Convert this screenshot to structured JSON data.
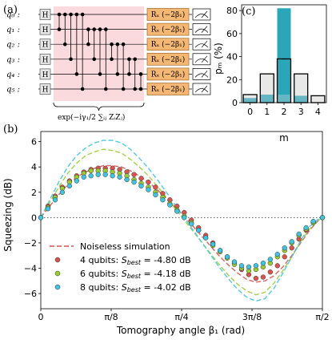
{
  "panel_labels": {
    "a": "(a)",
    "b": "(b)",
    "c": "(c)"
  },
  "circuit": {
    "qubits": [
      "q₀ :",
      "q₁ :",
      "q₂ :",
      "q₃ :",
      "q₄ :",
      "q₅ :"
    ],
    "h_gate": "H",
    "rx_gate": "Rₓ (−2β₁)",
    "expression": "exp(−iγ₁/2 ∑ᵢⱼ ZᵢZⱼ)",
    "colors": {
      "interaction_region": "#fadadd",
      "rx_gate": "#f5b774",
      "h_gate": "#e6e6e6"
    },
    "icons": [
      "measurement-meter-icon"
    ]
  },
  "chart_data": [
    {
      "id": "b",
      "type": "line",
      "xlabel": "Tomography angle β₁ (rad)",
      "ylabel": "Squeezing (dB)",
      "xlim": [
        0,
        1.5708
      ],
      "ylim": [
        -7.2,
        6.8
      ],
      "xticks": [
        0,
        0.3927,
        0.7854,
        1.1781,
        1.5708
      ],
      "xtick_labels": [
        "0",
        "π/8",
        "π/4",
        "3π/8",
        "π/2"
      ],
      "yticks": [
        -6,
        -4,
        -2,
        0,
        2,
        4,
        6
      ],
      "ytick_labels": [
        "−6",
        "−4",
        "−2",
        "0",
        "2",
        "4",
        "6"
      ],
      "zero_line": true,
      "legend_position": "lower-left",
      "legend": {
        "dashed": "Noiseless simulation",
        "items": [
          {
            "prefix": "4 qubits: ",
            "s": "S",
            "sub": "best",
            "suffix": " = -4.80 dB",
            "color": "#d9534f"
          },
          {
            "prefix": "6 qubits: ",
            "s": "S",
            "sub": "best",
            "suffix": " = -4.18 dB",
            "color": "#9acd32"
          },
          {
            "prefix": "8 qubits: ",
            "s": "S",
            "sub": "best",
            "suffix": " = -4.02 dB",
            "color": "#40c4e0"
          }
        ]
      },
      "series": [
        {
          "qubits": 4,
          "color": "#d9534f",
          "simulation": {
            "x": [
              0,
              0.05,
              0.1,
              0.15,
              0.2,
              0.25,
              0.3,
              0.35,
              0.4,
              0.45,
              0.5,
              0.55,
              0.6,
              0.65,
              0.7,
              0.75,
              0.8,
              0.85,
              0.9,
              0.95,
              1.0,
              1.05,
              1.1,
              1.15,
              1.2,
              1.25,
              1.3,
              1.35,
              1.4,
              1.45,
              1.5,
              1.55,
              1.5708
            ],
            "y": [
              0,
              0.9,
              1.8,
              2.6,
              3.2,
              3.6,
              3.9,
              4.1,
              4.1,
              4.0,
              3.7,
              3.3,
              2.8,
              2.2,
              1.5,
              0.8,
              0.1,
              -0.7,
              -1.5,
              -2.3,
              -3.1,
              -3.8,
              -4.4,
              -4.9,
              -5.1,
              -5.0,
              -4.6,
              -3.9,
              -3.0,
              -2.0,
              -1.0,
              -0.2,
              0
            ]
          },
          "measured": {
            "x": [
              0,
              0.04,
              0.08,
              0.12,
              0.16,
              0.2,
              0.24,
              0.28,
              0.32,
              0.36,
              0.4,
              0.44,
              0.48,
              0.52,
              0.56,
              0.6,
              0.64,
              0.68,
              0.72,
              0.76,
              0.8,
              0.84,
              0.88,
              0.92,
              0.96,
              1.0,
              1.04,
              1.08,
              1.12,
              1.16,
              1.2,
              1.24,
              1.28,
              1.32,
              1.36,
              1.4,
              1.44,
              1.48,
              1.52,
              1.5708
            ],
            "y": [
              0,
              0.9,
              1.7,
              2.4,
              2.9,
              3.3,
              3.6,
              3.8,
              3.9,
              3.9,
              3.9,
              3.8,
              3.6,
              3.4,
              3.1,
              2.8,
              2.4,
              1.9,
              1.4,
              0.9,
              0.4,
              -0.2,
              -0.8,
              -1.4,
              -2.0,
              -2.6,
              -3.1,
              -3.6,
              -4.1,
              -4.5,
              -4.8,
              -4.7,
              -4.3,
              -3.8,
              -3.1,
              -2.4,
              -1.7,
              -1.0,
              -0.4,
              0
            ]
          }
        },
        {
          "qubits": 6,
          "color": "#9acd32",
          "simulation": {
            "x": [
              0,
              0.05,
              0.1,
              0.15,
              0.2,
              0.25,
              0.3,
              0.35,
              0.4,
              0.45,
              0.5,
              0.55,
              0.6,
              0.65,
              0.7,
              0.75,
              0.8,
              0.85,
              0.9,
              0.95,
              1.0,
              1.05,
              1.1,
              1.15,
              1.2,
              1.25,
              1.3,
              1.35,
              1.4,
              1.45,
              1.5,
              1.55,
              1.5708
            ],
            "y": [
              0,
              1.2,
              2.4,
              3.5,
              4.3,
              4.9,
              5.2,
              5.4,
              5.3,
              5.1,
              4.6,
              4.0,
              3.3,
              2.5,
              1.6,
              0.7,
              -0.2,
              -1.1,
              -2.0,
              -2.9,
              -3.8,
              -4.6,
              -5.3,
              -5.8,
              -6.1,
              -5.9,
              -5.2,
              -4.2,
              -3.1,
              -1.9,
              -0.9,
              -0.2,
              0
            ]
          },
          "measured": {
            "x": [
              0,
              0.04,
              0.08,
              0.12,
              0.16,
              0.2,
              0.24,
              0.28,
              0.32,
              0.36,
              0.4,
              0.44,
              0.48,
              0.52,
              0.56,
              0.6,
              0.64,
              0.68,
              0.72,
              0.76,
              0.8,
              0.84,
              0.88,
              0.92,
              0.96,
              1.0,
              1.04,
              1.08,
              1.12,
              1.16,
              1.2,
              1.24,
              1.28,
              1.32,
              1.36,
              1.4,
              1.44,
              1.48,
              1.52,
              1.5708
            ],
            "y": [
              0,
              0.8,
              1.6,
              2.3,
              2.8,
              3.2,
              3.5,
              3.7,
              3.7,
              3.7,
              3.6,
              3.5,
              3.3,
              3.0,
              2.7,
              2.4,
              2.0,
              1.6,
              1.1,
              0.6,
              0.1,
              -0.4,
              -1.0,
              -1.6,
              -2.2,
              -2.7,
              -3.2,
              -3.7,
              -4.0,
              -4.2,
              -4.1,
              -3.9,
              -3.6,
              -3.1,
              -2.6,
              -2.0,
              -1.4,
              -0.9,
              -0.4,
              0
            ]
          }
        },
        {
          "qubits": 8,
          "color": "#40c4e0",
          "simulation": {
            "x": [
              0,
              0.05,
              0.1,
              0.15,
              0.2,
              0.25,
              0.3,
              0.35,
              0.4,
              0.45,
              0.5,
              0.55,
              0.6,
              0.65,
              0.7,
              0.75,
              0.8,
              0.85,
              0.9,
              0.95,
              1.0,
              1.05,
              1.1,
              1.15,
              1.2,
              1.25,
              1.3,
              1.35,
              1.4,
              1.45,
              1.5,
              1.55,
              1.5708
            ],
            "y": [
              0,
              1.4,
              2.8,
              4.0,
              4.9,
              5.5,
              5.9,
              6.1,
              6.1,
              5.9,
              5.4,
              4.7,
              3.9,
              3.0,
              2.0,
              1.0,
              0.0,
              -1.0,
              -2.0,
              -3.0,
              -4.0,
              -4.9,
              -5.7,
              -6.3,
              -6.6,
              -6.4,
              -5.6,
              -4.4,
              -3.1,
              -1.8,
              -0.7,
              -0.1,
              0
            ]
          },
          "measured": {
            "x": [
              0,
              0.04,
              0.08,
              0.12,
              0.16,
              0.2,
              0.24,
              0.28,
              0.32,
              0.36,
              0.4,
              0.44,
              0.48,
              0.52,
              0.56,
              0.6,
              0.64,
              0.68,
              0.72,
              0.76,
              0.8,
              0.84,
              0.88,
              0.92,
              0.96,
              1.0,
              1.04,
              1.08,
              1.12,
              1.16,
              1.2,
              1.24,
              1.28,
              1.32,
              1.36,
              1.4,
              1.44,
              1.48,
              1.52,
              1.5708
            ],
            "y": [
              0,
              0.7,
              1.4,
              2.0,
              2.5,
              2.9,
              3.2,
              3.3,
              3.4,
              3.4,
              3.3,
              3.2,
              3.0,
              2.8,
              2.5,
              2.2,
              1.8,
              1.4,
              1.0,
              0.5,
              0.0,
              -0.5,
              -1.0,
              -1.6,
              -2.1,
              -2.6,
              -3.1,
              -3.5,
              -3.8,
              -3.9,
              -3.8,
              -3.6,
              -3.3,
              -2.9,
              -2.4,
              -1.9,
              -1.3,
              -0.8,
              -0.3,
              0
            ]
          }
        }
      ]
    },
    {
      "id": "c",
      "type": "bar",
      "xlabel": "m",
      "ylabel": "pₘ (%)",
      "categories": [
        "0",
        "1",
        "2",
        "3",
        "4"
      ],
      "ylim": [
        0,
        85
      ],
      "yticks": [
        0,
        20,
        40,
        60,
        80
      ],
      "series": [
        {
          "style": "filled",
          "color": "#2aa6b8",
          "values": [
            0,
            0,
            82,
            0,
            0
          ]
        },
        {
          "style": "filled",
          "color": "#66b6c4",
          "values": [
            4,
            7,
            7,
            6,
            0
          ]
        },
        {
          "style": "outline",
          "color": "#e8e8e8",
          "values": [
            7,
            25,
            38,
            25,
            6
          ]
        }
      ]
    }
  ]
}
